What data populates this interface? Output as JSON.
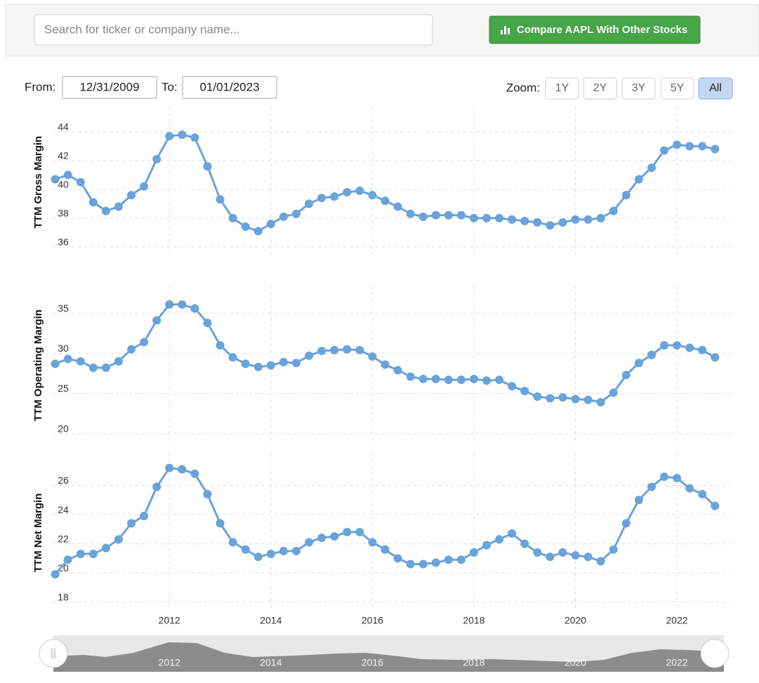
{
  "search": {
    "placeholder": "Search for ticker or company name..."
  },
  "compare_button": "Compare AAPL With Other Stocks",
  "range": {
    "from_label": "From:",
    "from": "12/31/2009",
    "to_label": "To:",
    "to": "01/01/2023"
  },
  "zoom": {
    "label": "Zoom:",
    "options": [
      "1Y",
      "2Y",
      "3Y",
      "5Y",
      "All"
    ],
    "active": "All"
  },
  "chart_data": [
    {
      "type": "line",
      "y_label": "TTM Gross Margin",
      "color": "#6aa3d9",
      "grid": true,
      "x": [
        2009.75,
        2010,
        2010.25,
        2010.5,
        2010.75,
        2011,
        2011.25,
        2011.5,
        2011.75,
        2012,
        2012.25,
        2012.5,
        2012.75,
        2013,
        2013.25,
        2013.5,
        2013.75,
        2014,
        2014.25,
        2014.5,
        2014.75,
        2015,
        2015.25,
        2015.5,
        2015.75,
        2016,
        2016.25,
        2016.5,
        2016.75,
        2017,
        2017.25,
        2017.5,
        2017.75,
        2018,
        2018.25,
        2018.5,
        2018.75,
        2019,
        2019.25,
        2019.5,
        2019.75,
        2020,
        2020.25,
        2020.5,
        2020.75,
        2021,
        2021.25,
        2021.5,
        2021.75,
        2022,
        2022.25,
        2022.5,
        2022.75
      ],
      "values": [
        40.7,
        41.0,
        40.5,
        39.1,
        38.5,
        38.8,
        39.6,
        40.2,
        42.1,
        43.7,
        43.8,
        43.6,
        41.6,
        39.3,
        38.0,
        37.4,
        37.1,
        37.6,
        38.1,
        38.3,
        39.0,
        39.4,
        39.5,
        39.8,
        39.9,
        39.6,
        39.2,
        38.8,
        38.3,
        38.1,
        38.2,
        38.2,
        38.2,
        38.0,
        38.0,
        38.0,
        37.9,
        37.8,
        37.7,
        37.5,
        37.7,
        37.9,
        37.9,
        38.0,
        38.5,
        39.6,
        40.7,
        41.5,
        42.7,
        43.1,
        43.0,
        43.0,
        42.8
      ],
      "xlim": [
        2009.7,
        2023.05
      ],
      "xticks": [
        2012,
        2014,
        2016,
        2018,
        2020,
        2022
      ],
      "ylim": [
        35.5,
        45.5
      ],
      "yticks": [
        36,
        38,
        40,
        42,
        44
      ]
    },
    {
      "type": "line",
      "y_label": "TTM Operating Margin",
      "color": "#6aa3d9",
      "grid": true,
      "x": [
        2009.75,
        2010,
        2010.25,
        2010.5,
        2010.75,
        2011,
        2011.25,
        2011.5,
        2011.75,
        2012,
        2012.25,
        2012.5,
        2012.75,
        2013,
        2013.25,
        2013.5,
        2013.75,
        2014,
        2014.25,
        2014.5,
        2014.75,
        2015,
        2015.25,
        2015.5,
        2015.75,
        2016,
        2016.25,
        2016.5,
        2016.75,
        2017,
        2017.25,
        2017.5,
        2017.75,
        2018,
        2018.25,
        2018.5,
        2018.75,
        2019,
        2019.25,
        2019.5,
        2019.75,
        2020,
        2020.25,
        2020.5,
        2020.75,
        2021,
        2021.25,
        2021.5,
        2021.75,
        2022,
        2022.25,
        2022.5,
        2022.75
      ],
      "values": [
        28.7,
        29.3,
        29.0,
        28.2,
        28.2,
        29.0,
        30.5,
        31.4,
        34.1,
        36.1,
        36.1,
        35.6,
        33.8,
        31.0,
        29.5,
        28.7,
        28.3,
        28.5,
        28.9,
        28.8,
        29.7,
        30.3,
        30.4,
        30.5,
        30.4,
        29.6,
        28.6,
        27.9,
        27.1,
        26.8,
        26.8,
        26.7,
        26.7,
        26.8,
        26.6,
        26.7,
        25.9,
        25.3,
        24.6,
        24.4,
        24.5,
        24.3,
        24.2,
        23.9,
        25.1,
        27.3,
        28.8,
        29.8,
        31.0,
        31.0,
        30.7,
        30.4,
        29.5
      ],
      "xlim": [
        2009.7,
        2023.05
      ],
      "xticks": [
        2012,
        2014,
        2016,
        2018,
        2020,
        2022
      ],
      "ylim": [
        19,
        38
      ],
      "yticks": [
        20,
        25,
        30,
        35
      ]
    },
    {
      "type": "line",
      "y_label": "TTM Net Margin",
      "color": "#6aa3d9",
      "grid": true,
      "x": [
        2009.75,
        2010,
        2010.25,
        2010.5,
        2010.75,
        2011,
        2011.25,
        2011.5,
        2011.75,
        2012,
        2012.25,
        2012.5,
        2012.75,
        2013,
        2013.25,
        2013.5,
        2013.75,
        2014,
        2014.25,
        2014.5,
        2014.75,
        2015,
        2015.25,
        2015.5,
        2015.75,
        2016,
        2016.25,
        2016.5,
        2016.75,
        2017,
        2017.25,
        2017.5,
        2017.75,
        2018,
        2018.25,
        2018.5,
        2018.75,
        2019,
        2019.25,
        2019.5,
        2019.75,
        2020,
        2020.25,
        2020.5,
        2020.75,
        2021,
        2021.25,
        2021.5,
        2021.75,
        2022,
        2022.25,
        2022.5,
        2022.75
      ],
      "values": [
        19.9,
        20.9,
        21.3,
        21.3,
        21.7,
        22.3,
        23.4,
        23.9,
        25.9,
        27.2,
        27.1,
        26.8,
        25.4,
        23.4,
        22.1,
        21.6,
        21.1,
        21.3,
        21.5,
        21.5,
        22.1,
        22.4,
        22.5,
        22.8,
        22.8,
        22.1,
        21.6,
        21.0,
        20.6,
        20.6,
        20.7,
        20.9,
        20.9,
        21.4,
        21.9,
        22.3,
        22.7,
        22.0,
        21.4,
        21.1,
        21.4,
        21.2,
        21.1,
        20.8,
        21.6,
        23.4,
        25.0,
        25.9,
        26.6,
        26.5,
        25.8,
        25.4,
        24.6
      ],
      "xlim": [
        2009.7,
        2023.05
      ],
      "xticks": [
        2012,
        2014,
        2016,
        2018,
        2020,
        2022
      ],
      "ylim": [
        17.5,
        28
      ],
      "yticks": [
        18,
        20,
        22,
        24,
        26
      ]
    }
  ]
}
